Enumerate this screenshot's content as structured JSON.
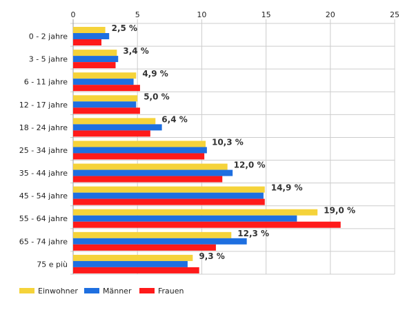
{
  "chart_data": {
    "type": "bar",
    "orientation": "horizontal",
    "categories": [
      "0 - 2 jahre",
      "3 - 5 jahre",
      "6 - 11 jahre",
      "12 - 17 jahre",
      "18 - 24 jahre",
      "25 - 34 jahre",
      "35 - 44 jahre",
      "45 - 54 jahre",
      "55 - 64 jahre",
      "65 - 74 jahre",
      "75 e più"
    ],
    "series": [
      {
        "name": "Einwohner",
        "color": "#f5d33a",
        "values": [
          2.5,
          3.4,
          4.9,
          5.0,
          6.4,
          10.3,
          12.0,
          14.9,
          19.0,
          12.3,
          9.3
        ]
      },
      {
        "name": "Männer",
        "color": "#1e6fe0",
        "values": [
          2.8,
          3.5,
          4.7,
          4.9,
          6.9,
          10.4,
          12.4,
          14.8,
          17.4,
          13.5,
          8.9
        ]
      },
      {
        "name": "Frauen",
        "color": "#ff1a1a",
        "values": [
          2.2,
          3.3,
          5.2,
          5.2,
          6.0,
          10.2,
          11.6,
          14.9,
          20.8,
          11.1,
          9.8
        ]
      }
    ],
    "data_labels": [
      "2,5 %",
      "3,4 %",
      "4,9 %",
      "5,0 %",
      "6,4 %",
      "10,3 %",
      "12,0 %",
      "14,9 %",
      "19,0 %",
      "12,3 %",
      "9,3 %"
    ],
    "x_ticks": [
      "0",
      "5",
      "10",
      "15",
      "20",
      "25"
    ],
    "xlim": [
      0,
      25
    ],
    "x_axis_position": "top",
    "grid": true,
    "legend_position": "bottom-left"
  }
}
